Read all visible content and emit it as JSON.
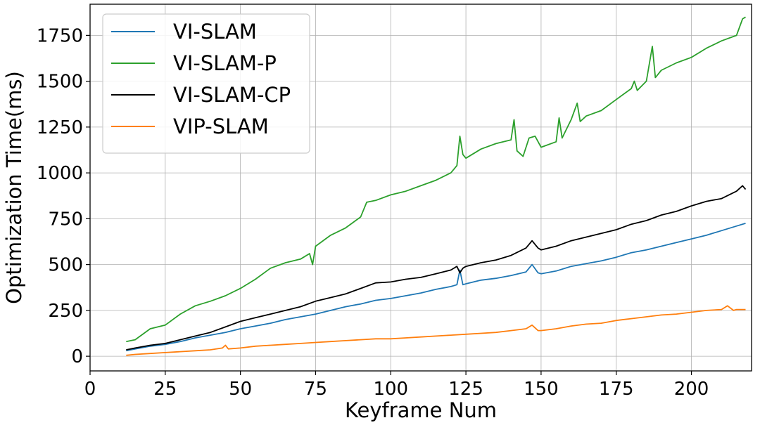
{
  "chart_data": {
    "type": "line",
    "title": "",
    "xlabel": "Keyframe Num",
    "ylabel": "Optimization Time(ms)",
    "xlim": [
      0,
      220
    ],
    "ylim": [
      -80,
      1920
    ],
    "xticks": [
      0,
      25,
      50,
      75,
      100,
      125,
      150,
      175,
      200
    ],
    "yticks": [
      0,
      250,
      500,
      750,
      1000,
      1250,
      1500,
      1750
    ],
    "grid": true,
    "legend_position": "top-left",
    "series": [
      {
        "name": "VI-SLAM",
        "color": "#1f77b4",
        "points": [
          [
            12,
            30
          ],
          [
            15,
            40
          ],
          [
            20,
            55
          ],
          [
            25,
            65
          ],
          [
            30,
            80
          ],
          [
            35,
            100
          ],
          [
            40,
            115
          ],
          [
            45,
            130
          ],
          [
            50,
            150
          ],
          [
            55,
            165
          ],
          [
            60,
            180
          ],
          [
            65,
            200
          ],
          [
            70,
            215
          ],
          [
            75,
            230
          ],
          [
            80,
            250
          ],
          [
            85,
            270
          ],
          [
            90,
            285
          ],
          [
            95,
            305
          ],
          [
            100,
            315
          ],
          [
            105,
            330
          ],
          [
            110,
            345
          ],
          [
            115,
            365
          ],
          [
            120,
            380
          ],
          [
            122,
            390
          ],
          [
            123,
            470
          ],
          [
            124,
            390
          ],
          [
            125,
            395
          ],
          [
            130,
            415
          ],
          [
            135,
            425
          ],
          [
            140,
            440
          ],
          [
            145,
            460
          ],
          [
            147,
            500
          ],
          [
            149,
            455
          ],
          [
            150,
            450
          ],
          [
            155,
            465
          ],
          [
            160,
            490
          ],
          [
            165,
            505
          ],
          [
            170,
            520
          ],
          [
            175,
            540
          ],
          [
            180,
            565
          ],
          [
            185,
            580
          ],
          [
            190,
            600
          ],
          [
            195,
            620
          ],
          [
            200,
            640
          ],
          [
            205,
            660
          ],
          [
            210,
            685
          ],
          [
            215,
            710
          ],
          [
            218,
            725
          ]
        ]
      },
      {
        "name": "VI-SLAM-P",
        "color": "#2ca02c",
        "points": [
          [
            12,
            80
          ],
          [
            15,
            90
          ],
          [
            20,
            150
          ],
          [
            25,
            170
          ],
          [
            30,
            230
          ],
          [
            35,
            275
          ],
          [
            40,
            300
          ],
          [
            45,
            330
          ],
          [
            50,
            370
          ],
          [
            55,
            420
          ],
          [
            60,
            480
          ],
          [
            65,
            510
          ],
          [
            70,
            530
          ],
          [
            73,
            560
          ],
          [
            74,
            500
          ],
          [
            75,
            600
          ],
          [
            80,
            660
          ],
          [
            85,
            700
          ],
          [
            90,
            760
          ],
          [
            92,
            840
          ],
          [
            95,
            850
          ],
          [
            100,
            880
          ],
          [
            105,
            900
          ],
          [
            110,
            930
          ],
          [
            115,
            960
          ],
          [
            120,
            1000
          ],
          [
            122,
            1040
          ],
          [
            123,
            1200
          ],
          [
            124,
            1100
          ],
          [
            125,
            1080
          ],
          [
            130,
            1130
          ],
          [
            135,
            1160
          ],
          [
            140,
            1180
          ],
          [
            141,
            1290
          ],
          [
            142,
            1120
          ],
          [
            144,
            1090
          ],
          [
            146,
            1190
          ],
          [
            148,
            1200
          ],
          [
            150,
            1140
          ],
          [
            155,
            1170
          ],
          [
            156,
            1300
          ],
          [
            157,
            1190
          ],
          [
            160,
            1290
          ],
          [
            162,
            1380
          ],
          [
            163,
            1280
          ],
          [
            165,
            1310
          ],
          [
            170,
            1340
          ],
          [
            175,
            1400
          ],
          [
            180,
            1460
          ],
          [
            181,
            1500
          ],
          [
            182,
            1450
          ],
          [
            185,
            1500
          ],
          [
            187,
            1690
          ],
          [
            188,
            1520
          ],
          [
            190,
            1560
          ],
          [
            195,
            1600
          ],
          [
            200,
            1630
          ],
          [
            205,
            1680
          ],
          [
            210,
            1720
          ],
          [
            215,
            1750
          ],
          [
            217,
            1840
          ],
          [
            218,
            1850
          ]
        ]
      },
      {
        "name": "VI-SLAM-CP",
        "color": "#000000",
        "points": [
          [
            12,
            35
          ],
          [
            15,
            45
          ],
          [
            20,
            60
          ],
          [
            25,
            70
          ],
          [
            30,
            90
          ],
          [
            35,
            110
          ],
          [
            40,
            130
          ],
          [
            45,
            160
          ],
          [
            50,
            190
          ],
          [
            55,
            210
          ],
          [
            60,
            230
          ],
          [
            65,
            250
          ],
          [
            70,
            270
          ],
          [
            75,
            300
          ],
          [
            80,
            320
          ],
          [
            85,
            340
          ],
          [
            90,
            370
          ],
          [
            95,
            400
          ],
          [
            100,
            405
          ],
          [
            105,
            420
          ],
          [
            110,
            430
          ],
          [
            115,
            450
          ],
          [
            120,
            470
          ],
          [
            122,
            490
          ],
          [
            123,
            455
          ],
          [
            124,
            480
          ],
          [
            125,
            490
          ],
          [
            130,
            510
          ],
          [
            135,
            525
          ],
          [
            140,
            550
          ],
          [
            145,
            590
          ],
          [
            147,
            630
          ],
          [
            149,
            590
          ],
          [
            150,
            580
          ],
          [
            155,
            600
          ],
          [
            160,
            630
          ],
          [
            165,
            650
          ],
          [
            170,
            670
          ],
          [
            175,
            690
          ],
          [
            180,
            720
          ],
          [
            185,
            740
          ],
          [
            190,
            770
          ],
          [
            195,
            790
          ],
          [
            200,
            820
          ],
          [
            205,
            845
          ],
          [
            210,
            860
          ],
          [
            215,
            900
          ],
          [
            217,
            930
          ],
          [
            218,
            910
          ]
        ]
      },
      {
        "name": "VIP-SLAM",
        "color": "#ff7f0e",
        "points": [
          [
            12,
            5
          ],
          [
            15,
            10
          ],
          [
            20,
            15
          ],
          [
            25,
            20
          ],
          [
            30,
            25
          ],
          [
            35,
            30
          ],
          [
            40,
            35
          ],
          [
            44,
            45
          ],
          [
            45,
            60
          ],
          [
            46,
            40
          ],
          [
            50,
            45
          ],
          [
            55,
            55
          ],
          [
            60,
            60
          ],
          [
            65,
            65
          ],
          [
            70,
            70
          ],
          [
            75,
            75
          ],
          [
            80,
            80
          ],
          [
            85,
            85
          ],
          [
            90,
            90
          ],
          [
            95,
            95
          ],
          [
            100,
            95
          ],
          [
            105,
            100
          ],
          [
            110,
            105
          ],
          [
            115,
            110
          ],
          [
            120,
            115
          ],
          [
            125,
            120
          ],
          [
            130,
            125
          ],
          [
            135,
            130
          ],
          [
            140,
            140
          ],
          [
            145,
            150
          ],
          [
            147,
            170
          ],
          [
            149,
            140
          ],
          [
            150,
            140
          ],
          [
            155,
            150
          ],
          [
            160,
            165
          ],
          [
            165,
            175
          ],
          [
            170,
            180
          ],
          [
            175,
            195
          ],
          [
            180,
            205
          ],
          [
            185,
            215
          ],
          [
            190,
            225
          ],
          [
            195,
            230
          ],
          [
            200,
            240
          ],
          [
            205,
            250
          ],
          [
            210,
            255
          ],
          [
            212,
            275
          ],
          [
            214,
            250
          ],
          [
            215,
            255
          ],
          [
            218,
            255
          ]
        ]
      }
    ]
  }
}
